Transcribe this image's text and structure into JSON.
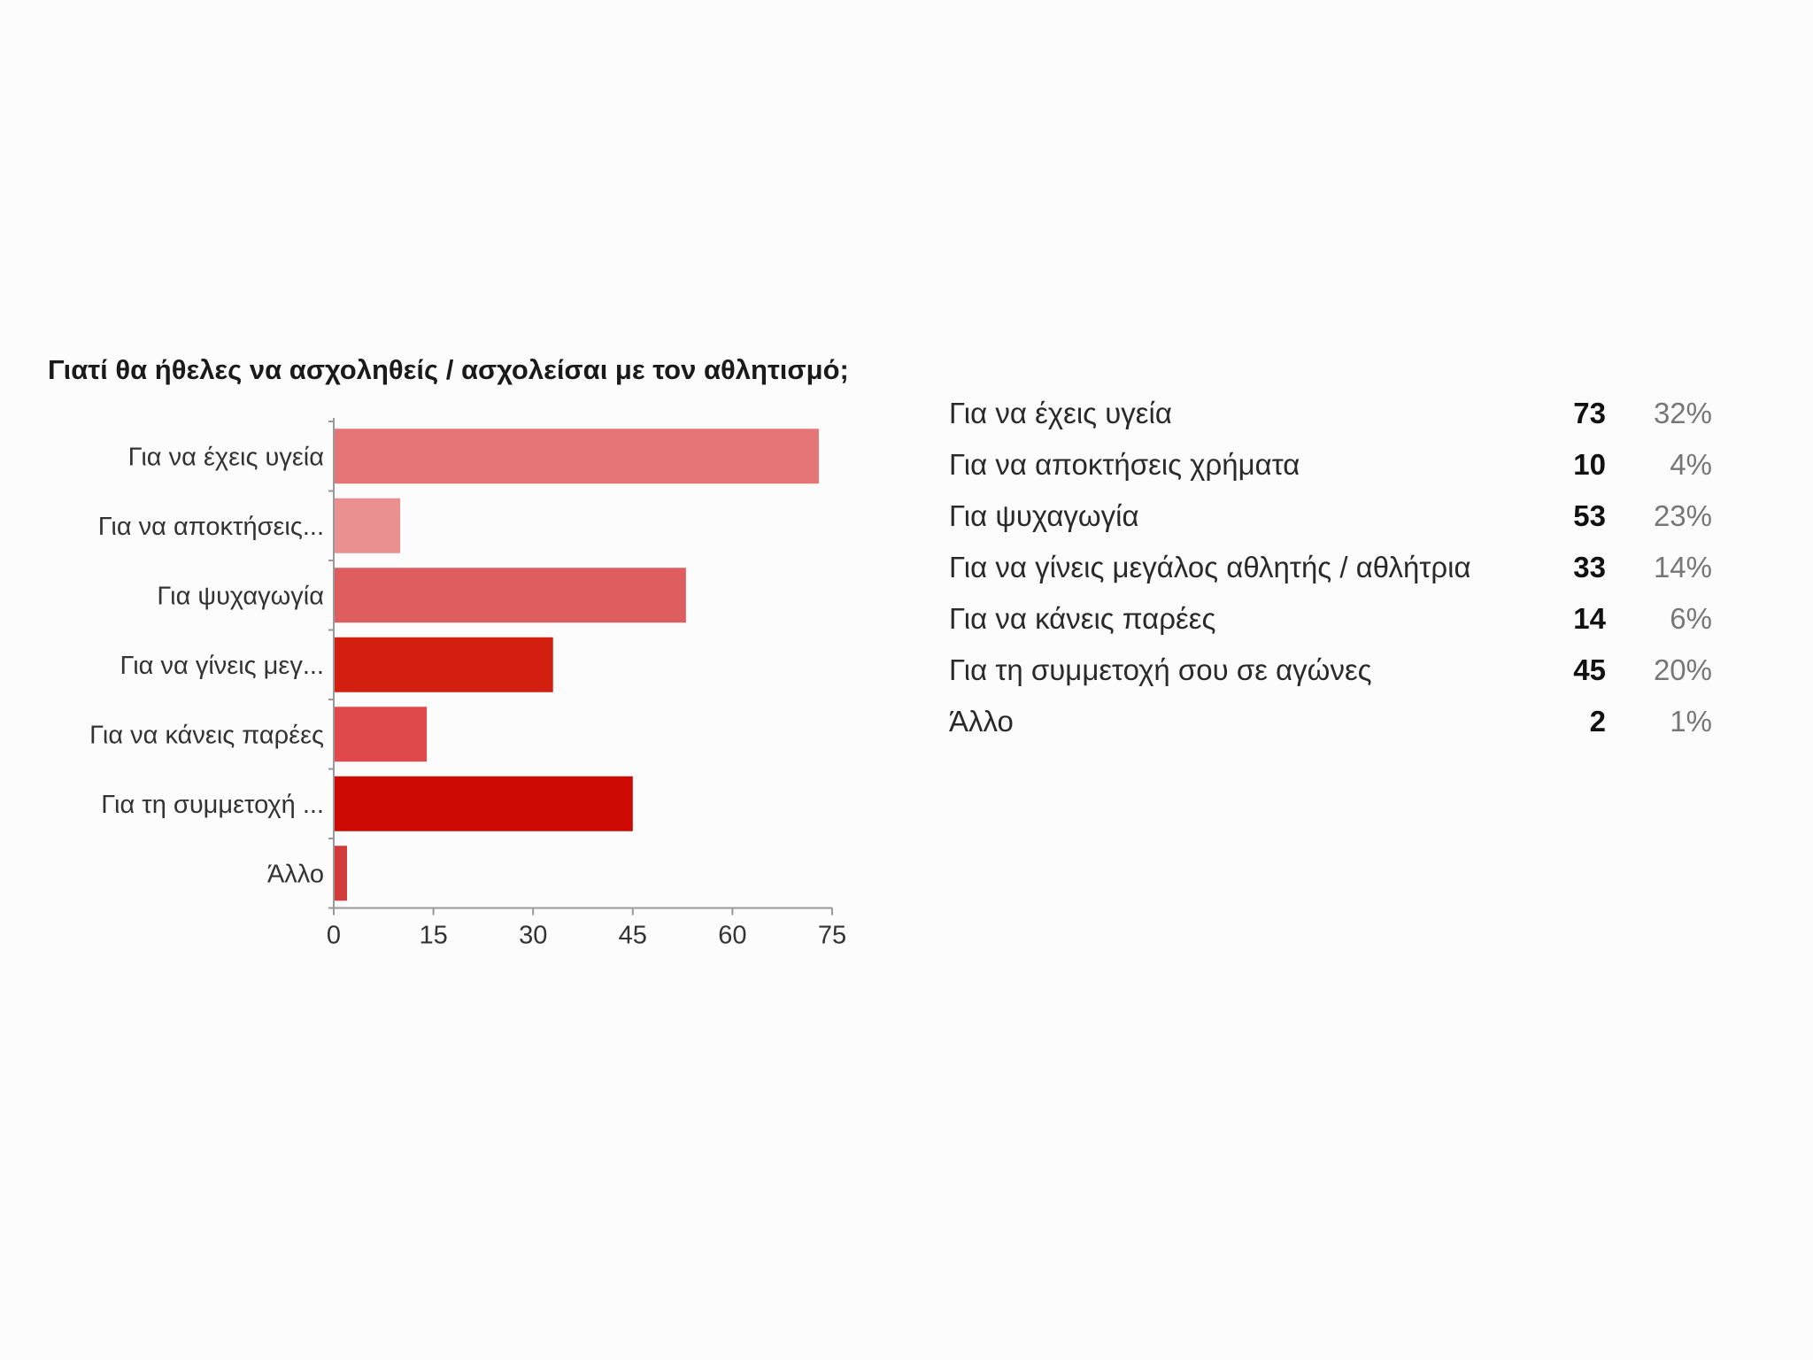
{
  "chart_data": {
    "type": "bar",
    "orientation": "horizontal",
    "title": "Γιατί θα ήθελες να ασχοληθείς / ασχολείσαι με τον αθλητισμό;",
    "categories": [
      "Για να έχεις υγεία",
      "Για να αποκτήσεις...",
      "Για ψυχαγωγία",
      "Για να γίνεις μεγ...",
      "Για να κάνεις παρέες",
      "Για τη συμμετοχή ...",
      "Άλλο"
    ],
    "values": [
      73,
      10,
      53,
      33,
      14,
      45,
      2
    ],
    "colors": [
      "#e47678",
      "#eb9090",
      "#de5e5f",
      "#d21f10",
      "#e04a4c",
      "#cc0a03",
      "#d33b3b"
    ],
    "xlim": [
      0,
      75
    ],
    "xticks": [
      "0",
      "15",
      "30",
      "45",
      "60",
      "75"
    ],
    "grid": false,
    "summary": [
      {
        "label": "Για να έχεις υγεία",
        "count": "73",
        "percent": "32%"
      },
      {
        "label": "Για να αποκτήσεις χρήματα",
        "count": "10",
        "percent": "4%"
      },
      {
        "label": "Για ψυχαγωγία",
        "count": "53",
        "percent": "23%"
      },
      {
        "label": "Για να γίνεις μεγάλος αθλητής / αθλήτρια",
        "count": "33",
        "percent": "14%"
      },
      {
        "label": "Για να κάνεις παρέες",
        "count": "14",
        "percent": "6%"
      },
      {
        "label": "Για τη συμμετοχή σου σε αγώνες",
        "count": "45",
        "percent": "20%"
      },
      {
        "label": "Άλλο",
        "count": "2",
        "percent": "1%"
      }
    ]
  }
}
